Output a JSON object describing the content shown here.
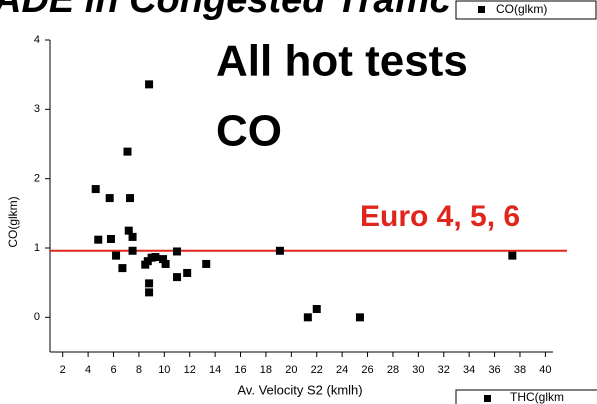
{
  "chart_data": {
    "type": "scatter",
    "title": "ADE in Congested Traffic",
    "annotations": [
      "All hot tests",
      "CO",
      "Euro 4, 5, 6"
    ],
    "x_label": "Av. Velocity S2 (kmlh)",
    "y_label": "CO(glkm)",
    "xlim": [
      1,
      40.6
    ],
    "ylim": [
      -0.5,
      4
    ],
    "xticks": [
      2,
      4,
      6,
      8,
      10,
      12,
      14,
      16,
      18,
      20,
      22,
      24,
      26,
      28,
      30,
      32,
      34,
      36,
      38,
      40
    ],
    "yticks": [
      0,
      1,
      2,
      3,
      4
    ],
    "limit_line": 0.96,
    "limit_color": "#e0261c",
    "series": [
      {
        "name": "CO(glkm)",
        "color": "#000000",
        "x": [
          4.6,
          4.8,
          5.7,
          5.8,
          6.2,
          6.7,
          7.1,
          7.3,
          7.2,
          7.5,
          7.5,
          8.8,
          8.5,
          8.7,
          9.0,
          8.8,
          8.8,
          9.3,
          9.9,
          10.1,
          11.0,
          11.0,
          11.8,
          13.3,
          19.1,
          21.3,
          22.0,
          25.4,
          37.4
        ],
        "values": [
          1.85,
          1.12,
          1.72,
          1.13,
          0.89,
          0.71,
          2.39,
          1.72,
          1.25,
          1.16,
          0.96,
          3.36,
          0.76,
          0.81,
          0.86,
          0.49,
          0.36,
          0.87,
          0.84,
          0.77,
          0.95,
          0.58,
          0.64,
          0.77,
          0.96,
          0.0,
          0.12,
          0.0,
          0.89
        ]
      }
    ],
    "second_legend": "THC(glkm"
  }
}
